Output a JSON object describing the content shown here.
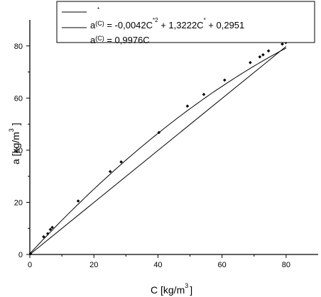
{
  "chart_data": {
    "type": "scatter",
    "xlabel": "C [kg/m",
    "xlabel_sup": "3",
    "xlabel_close": "]",
    "ylabel": "a [kg/m",
    "ylabel_sup": "3",
    "ylabel_close": "]",
    "xlim": [
      0,
      90
    ],
    "ylim": [
      0,
      90
    ],
    "x_ticks": [
      0,
      20,
      40,
      60,
      80
    ],
    "y_ticks": [
      0,
      20,
      40,
      60,
      80
    ],
    "x_tick_labels": [
      "0",
      "20",
      "40",
      "60",
      "80"
    ],
    "y_tick_labels": [
      "0",
      "20",
      "40",
      "60",
      "80"
    ],
    "grid": false,
    "legend_position": "top-right",
    "series": [
      {
        "kind": "markers",
        "x": [
          0.2,
          4.3,
          5.6,
          6.4,
          7.0,
          15.1,
          25.1,
          28.5,
          40.3,
          49.2,
          54.3,
          60.8,
          68.8,
          71.8,
          72.8,
          74.5,
          78.8,
          79.9
        ],
        "y": [
          0.3,
          6.8,
          8.0,
          9.6,
          10.4,
          20.5,
          31.8,
          35.5,
          46.8,
          56.9,
          61.4,
          66.9,
          73.6,
          75.8,
          76.6,
          78.1,
          80.7,
          81.3
        ]
      },
      {
        "kind": "line",
        "fit": "quadratic",
        "coef": [
          -0.0042,
          1.3222,
          0.2951
        ]
      },
      {
        "kind": "line",
        "fit": "linear",
        "coef": [
          0.9976
        ]
      }
    ],
    "legend": [
      {
        "prefix": "",
        "star": "*",
        "text": ""
      },
      {
        "prefix": "a",
        "sub": "(C)",
        "text": " = -0,0042C",
        "sup": "*2",
        "text2": " + 1,3222C",
        "sup2": "*",
        "text3": " + 0,2951"
      },
      {
        "prefix": "a",
        "sub": "(C)",
        "text": " = 0,9976C"
      }
    ]
  }
}
